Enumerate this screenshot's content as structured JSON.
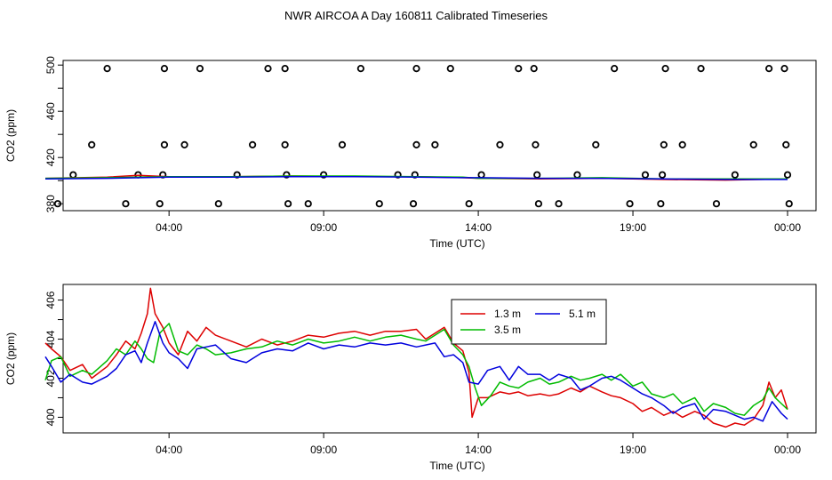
{
  "title": "NWR AIRCOA A  Day 160811  Calibrated Timeseries",
  "colors": {
    "s1": "#dd0000",
    "s2": "#00bb00",
    "s3": "#0000dd",
    "axis": "#000000"
  },
  "chart_data": [
    {
      "type": "scatter",
      "name": "top-panel",
      "xlabel": "Time (UTC)",
      "ylabel": "CO2 (ppm)",
      "xlim": [
        0,
        24
      ],
      "ylim": [
        374,
        504
      ],
      "xticks": [
        {
          "pos": 4,
          "label": "04:00"
        },
        {
          "pos": 9,
          "label": "09:00"
        },
        {
          "pos": 14,
          "label": "14:00"
        },
        {
          "pos": 19,
          "label": "19:00"
        },
        {
          "pos": 24,
          "label": "00:00"
        }
      ],
      "yticks": [
        380,
        420,
        460,
        500
      ],
      "yminor": [
        400,
        440,
        480
      ],
      "reference_points": [
        {
          "x": 0.4,
          "y": 380
        },
        {
          "x": 0.9,
          "y": 405
        },
        {
          "x": 1.5,
          "y": 431
        },
        {
          "x": 2.0,
          "y": 497
        },
        {
          "x": 2.6,
          "y": 380
        },
        {
          "x": 3.0,
          "y": 405
        },
        {
          "x": 3.7,
          "y": 380
        },
        {
          "x": 3.8,
          "y": 405
        },
        {
          "x": 3.85,
          "y": 431
        },
        {
          "x": 3.85,
          "y": 497
        },
        {
          "x": 4.5,
          "y": 431
        },
        {
          "x": 5.0,
          "y": 497
        },
        {
          "x": 5.6,
          "y": 380
        },
        {
          "x": 6.2,
          "y": 405
        },
        {
          "x": 6.7,
          "y": 431
        },
        {
          "x": 7.2,
          "y": 497
        },
        {
          "x": 7.75,
          "y": 431
        },
        {
          "x": 7.75,
          "y": 497
        },
        {
          "x": 7.8,
          "y": 405
        },
        {
          "x": 7.85,
          "y": 380
        },
        {
          "x": 8.5,
          "y": 380
        },
        {
          "x": 9.0,
          "y": 405
        },
        {
          "x": 9.6,
          "y": 431
        },
        {
          "x": 10.2,
          "y": 497
        },
        {
          "x": 10.8,
          "y": 380
        },
        {
          "x": 11.4,
          "y": 405
        },
        {
          "x": 11.9,
          "y": 380
        },
        {
          "x": 11.95,
          "y": 405
        },
        {
          "x": 12.0,
          "y": 431
        },
        {
          "x": 12.0,
          "y": 497
        },
        {
          "x": 12.6,
          "y": 431
        },
        {
          "x": 13.1,
          "y": 497
        },
        {
          "x": 13.7,
          "y": 380
        },
        {
          "x": 14.1,
          "y": 405
        },
        {
          "x": 14.7,
          "y": 431
        },
        {
          "x": 15.3,
          "y": 497
        },
        {
          "x": 15.8,
          "y": 497
        },
        {
          "x": 15.85,
          "y": 431
        },
        {
          "x": 15.9,
          "y": 405
        },
        {
          "x": 15.95,
          "y": 380
        },
        {
          "x": 16.6,
          "y": 380
        },
        {
          "x": 17.2,
          "y": 405
        },
        {
          "x": 17.8,
          "y": 431
        },
        {
          "x": 18.4,
          "y": 497
        },
        {
          "x": 18.9,
          "y": 380
        },
        {
          "x": 19.4,
          "y": 405
        },
        {
          "x": 19.9,
          "y": 380
        },
        {
          "x": 19.95,
          "y": 405
        },
        {
          "x": 20.0,
          "y": 431
        },
        {
          "x": 20.05,
          "y": 497
        },
        {
          "x": 20.6,
          "y": 431
        },
        {
          "x": 21.2,
          "y": 497
        },
        {
          "x": 21.7,
          "y": 380
        },
        {
          "x": 22.3,
          "y": 405
        },
        {
          "x": 22.9,
          "y": 431
        },
        {
          "x": 23.4,
          "y": 497
        },
        {
          "x": 23.9,
          "y": 497
        },
        {
          "x": 23.95,
          "y": 431
        },
        {
          "x": 24.0,
          "y": 405
        },
        {
          "x": 24.05,
          "y": 380
        }
      ],
      "series": [
        {
          "name": "1.3 m",
          "color": "#dd0000",
          "x": [
            0,
            2,
            3,
            4,
            6,
            8,
            10,
            12,
            13.5,
            14,
            16,
            18,
            20,
            22,
            24
          ],
          "values": [
            402,
            403,
            404.5,
            403.5,
            403.5,
            404,
            403.5,
            403.5,
            402.5,
            402,
            401.5,
            402,
            401,
            400.5,
            401.5
          ]
        },
        {
          "name": "3.5 m",
          "color": "#00bb00",
          "x": [
            0,
            2,
            4,
            6,
            8,
            10,
            12,
            13.5,
            14,
            16,
            18,
            20,
            22,
            24
          ],
          "values": [
            402,
            402.5,
            403.5,
            403.5,
            404,
            404,
            403.5,
            403,
            402,
            402,
            402.5,
            401.5,
            401.5,
            401.5
          ]
        },
        {
          "name": "5.1 m",
          "color": "#0000dd",
          "x": [
            0,
            2,
            4,
            6,
            8,
            10,
            12,
            13.5,
            14,
            16,
            18,
            20,
            22,
            24
          ],
          "values": [
            401.5,
            402,
            403,
            403,
            403.5,
            403.5,
            403,
            402.5,
            402.5,
            402,
            402,
            401.5,
            401,
            401
          ]
        }
      ]
    },
    {
      "type": "line",
      "name": "bottom-panel",
      "xlabel": "Time (UTC)",
      "ylabel": "CO2 (ppm)",
      "xlim": [
        0,
        24
      ],
      "ylim": [
        399.2,
        406.8
      ],
      "xticks": [
        {
          "pos": 4,
          "label": "04:00"
        },
        {
          "pos": 9,
          "label": "09:00"
        },
        {
          "pos": 14,
          "label": "14:00"
        },
        {
          "pos": 19,
          "label": "19:00"
        },
        {
          "pos": 24,
          "label": "00:00"
        }
      ],
      "yticks": [
        400,
        402,
        404,
        406
      ],
      "yminor": [
        401,
        403,
        405
      ],
      "legend": {
        "placement": "top-center",
        "entries": [
          "1.3 m",
          "3.5 m",
          "5.1 m"
        ]
      },
      "series": [
        {
          "name": "1.3 m",
          "color": "#dd0000",
          "x": [
            0.0,
            0.2,
            0.5,
            0.8,
            1.2,
            1.5,
            2.0,
            2.3,
            2.6,
            2.9,
            3.1,
            3.3,
            3.4,
            3.55,
            3.8,
            4.0,
            4.3,
            4.6,
            4.9,
            5.2,
            5.5,
            6.0,
            6.5,
            7.0,
            7.5,
            8.0,
            8.5,
            9.0,
            9.5,
            10.0,
            10.5,
            11.0,
            11.5,
            12.0,
            12.3,
            12.6,
            12.9,
            13.2,
            13.5,
            13.7,
            13.8,
            14.0,
            14.3,
            14.7,
            15.0,
            15.3,
            15.6,
            16.0,
            16.3,
            16.6,
            17.0,
            17.3,
            17.6,
            18.0,
            18.3,
            18.6,
            19.0,
            19.3,
            19.6,
            20.0,
            20.3,
            20.6,
            21.0,
            21.3,
            21.6,
            22.0,
            22.3,
            22.6,
            22.9,
            23.2,
            23.4,
            23.6,
            23.8,
            24.0
          ],
          "values": [
            403.8,
            403.5,
            403.1,
            402.4,
            402.7,
            402.0,
            402.6,
            403.2,
            403.9,
            403.5,
            404.3,
            405.3,
            406.6,
            405.3,
            404.6,
            403.8,
            403.2,
            404.4,
            403.9,
            404.6,
            404.2,
            403.9,
            403.6,
            404.0,
            403.7,
            403.9,
            404.2,
            404.1,
            404.3,
            404.4,
            404.2,
            404.4,
            404.4,
            404.5,
            404.0,
            404.3,
            404.6,
            403.8,
            403.4,
            402.3,
            400.0,
            401.0,
            401.0,
            401.3,
            401.2,
            401.3,
            401.1,
            401.2,
            401.1,
            401.2,
            401.5,
            401.3,
            401.6,
            401.3,
            401.1,
            401.0,
            400.7,
            400.3,
            400.5,
            400.1,
            400.3,
            400.0,
            400.3,
            400.1,
            399.7,
            399.5,
            399.7,
            399.6,
            399.9,
            400.6,
            401.8,
            401.0,
            401.4,
            400.4
          ]
        },
        {
          "name": "3.5 m",
          "color": "#00bb00",
          "x": [
            0.0,
            0.2,
            0.5,
            0.8,
            1.2,
            1.5,
            2.0,
            2.3,
            2.6,
            2.9,
            3.1,
            3.3,
            3.5,
            3.7,
            4.0,
            4.3,
            4.6,
            4.9,
            5.2,
            5.5,
            6.0,
            6.5,
            7.0,
            7.5,
            8.0,
            8.5,
            9.0,
            9.5,
            10.0,
            10.5,
            11.0,
            11.5,
            12.0,
            12.3,
            12.6,
            12.9,
            13.2,
            13.5,
            13.7,
            13.9,
            14.1,
            14.4,
            14.7,
            15.0,
            15.3,
            15.6,
            16.0,
            16.3,
            16.6,
            17.0,
            17.3,
            17.6,
            18.0,
            18.3,
            18.6,
            19.0,
            19.3,
            19.6,
            20.0,
            20.3,
            20.6,
            21.0,
            21.3,
            21.6,
            22.0,
            22.3,
            22.6,
            22.9,
            23.2,
            23.4,
            23.6,
            23.8,
            24.0
          ],
          "values": [
            401.9,
            402.9,
            403.1,
            402.1,
            402.4,
            402.2,
            402.9,
            403.5,
            403.2,
            403.9,
            403.5,
            403.0,
            402.8,
            404.3,
            404.8,
            403.4,
            403.2,
            403.7,
            403.5,
            403.2,
            403.3,
            403.5,
            403.6,
            403.9,
            403.7,
            404.0,
            403.8,
            403.9,
            404.1,
            403.9,
            404.1,
            404.2,
            404.0,
            403.9,
            404.2,
            404.5,
            403.7,
            403.2,
            402.6,
            401.5,
            400.6,
            401.1,
            401.8,
            401.6,
            401.5,
            401.8,
            402.0,
            401.7,
            401.8,
            402.1,
            401.9,
            402.0,
            402.2,
            401.9,
            402.2,
            401.6,
            401.8,
            401.2,
            401.0,
            401.2,
            400.7,
            401.0,
            400.3,
            400.7,
            400.5,
            400.2,
            400.1,
            400.6,
            400.9,
            401.5,
            401.0,
            400.7,
            400.4
          ]
        },
        {
          "name": "5.1 m",
          "color": "#0000dd",
          "x": [
            0.0,
            0.2,
            0.5,
            0.8,
            1.2,
            1.5,
            2.0,
            2.3,
            2.6,
            2.9,
            3.1,
            3.3,
            3.55,
            3.8,
            4.0,
            4.3,
            4.6,
            4.9,
            5.2,
            5.5,
            6.0,
            6.5,
            7.0,
            7.5,
            8.0,
            8.5,
            9.0,
            9.5,
            10.0,
            10.5,
            11.0,
            11.5,
            12.0,
            12.3,
            12.6,
            12.9,
            13.2,
            13.5,
            13.7,
            14.0,
            14.3,
            14.7,
            15.0,
            15.3,
            15.6,
            16.0,
            16.3,
            16.6,
            17.0,
            17.3,
            17.6,
            18.0,
            18.3,
            18.6,
            19.0,
            19.3,
            19.6,
            20.0,
            20.3,
            20.6,
            21.0,
            21.3,
            21.6,
            22.0,
            22.3,
            22.6,
            22.9,
            23.2,
            23.5,
            23.8,
            24.0
          ],
          "values": [
            403.1,
            402.6,
            401.8,
            402.2,
            401.8,
            401.7,
            402.1,
            402.5,
            403.2,
            403.4,
            402.8,
            403.8,
            404.9,
            403.8,
            403.3,
            403.0,
            402.5,
            403.5,
            403.6,
            403.7,
            403.0,
            402.8,
            403.3,
            403.5,
            403.4,
            403.8,
            403.5,
            403.7,
            403.6,
            403.8,
            403.7,
            403.8,
            403.6,
            403.7,
            403.8,
            403.1,
            403.2,
            402.8,
            401.8,
            401.7,
            402.4,
            402.6,
            401.9,
            402.6,
            402.2,
            402.2,
            401.9,
            402.2,
            402.0,
            401.4,
            401.6,
            402.0,
            402.1,
            401.9,
            401.5,
            401.2,
            401.0,
            400.6,
            400.2,
            400.5,
            400.7,
            399.9,
            400.4,
            400.3,
            400.1,
            399.9,
            400.0,
            399.8,
            400.8,
            400.2,
            399.9
          ]
        }
      ]
    }
  ]
}
